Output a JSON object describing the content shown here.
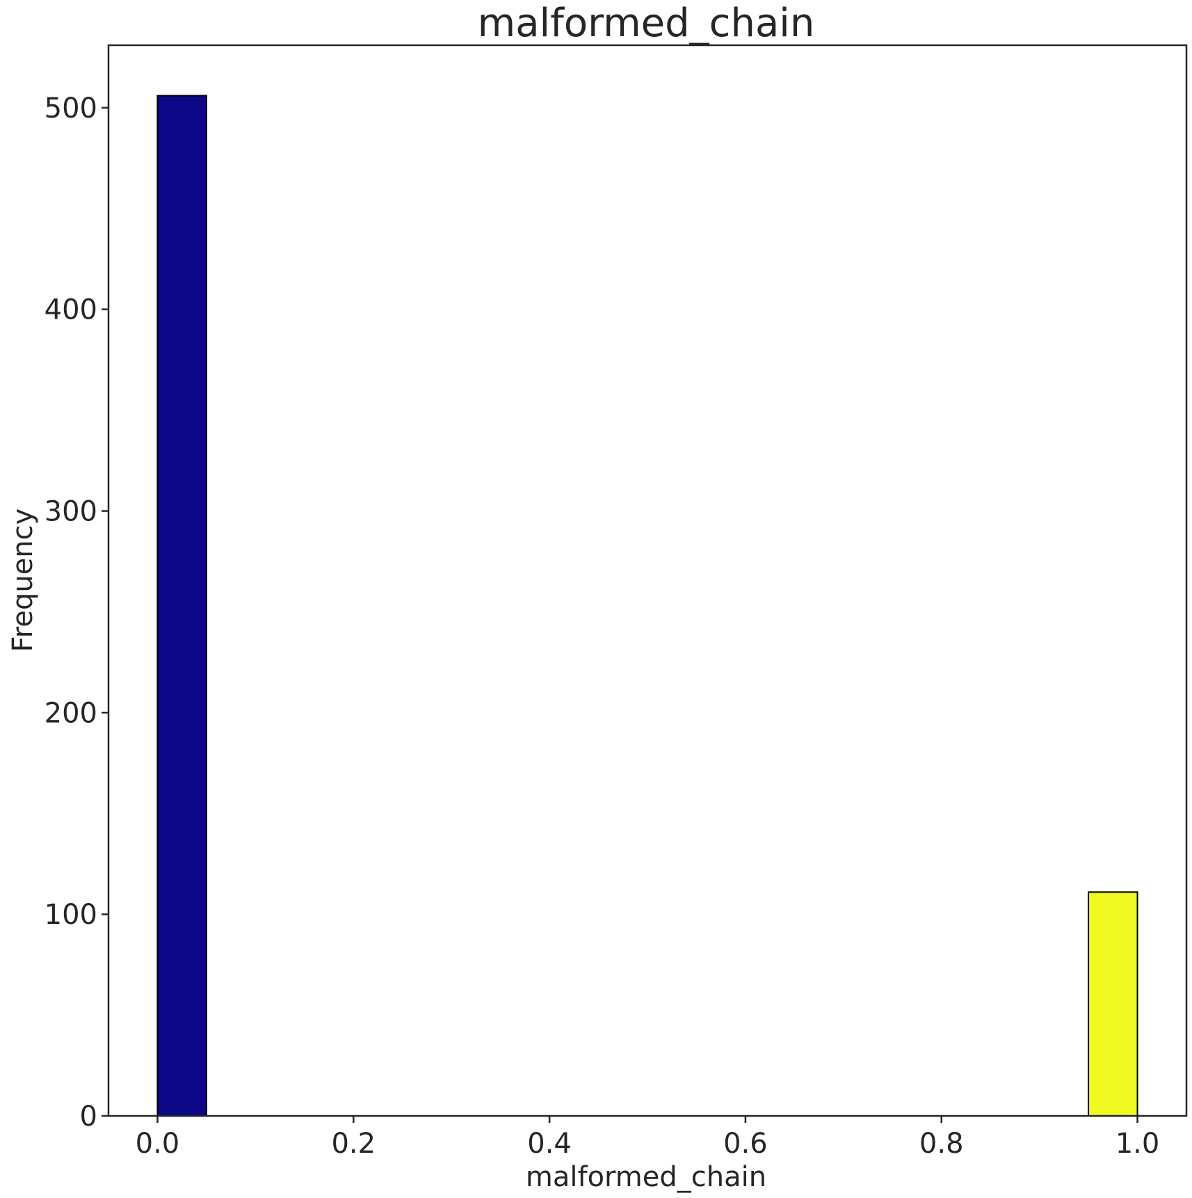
{
  "chart_data": {
    "type": "bar",
    "title": "malformed_chain",
    "xlabel": "malformed_chain",
    "ylabel": "Frequency",
    "xlim": [
      -0.05,
      1.05
    ],
    "ylim": [
      0,
      531
    ],
    "xticks": [
      0.0,
      0.2,
      0.4,
      0.6,
      0.8,
      1.0
    ],
    "xtick_labels": [
      "0.0",
      "0.2",
      "0.4",
      "0.6",
      "0.8",
      "1.0"
    ],
    "yticks": [
      0,
      100,
      200,
      300,
      400,
      500
    ],
    "ytick_labels": [
      "0",
      "100",
      "200",
      "300",
      "400",
      "500"
    ],
    "grid": false,
    "bins": [
      {
        "x0": 0.0,
        "x1": 0.05,
        "value": 506,
        "color": "#0d0887"
      },
      {
        "x0": 0.95,
        "x1": 1.0,
        "value": 111,
        "color": "#f0f921"
      }
    ]
  }
}
